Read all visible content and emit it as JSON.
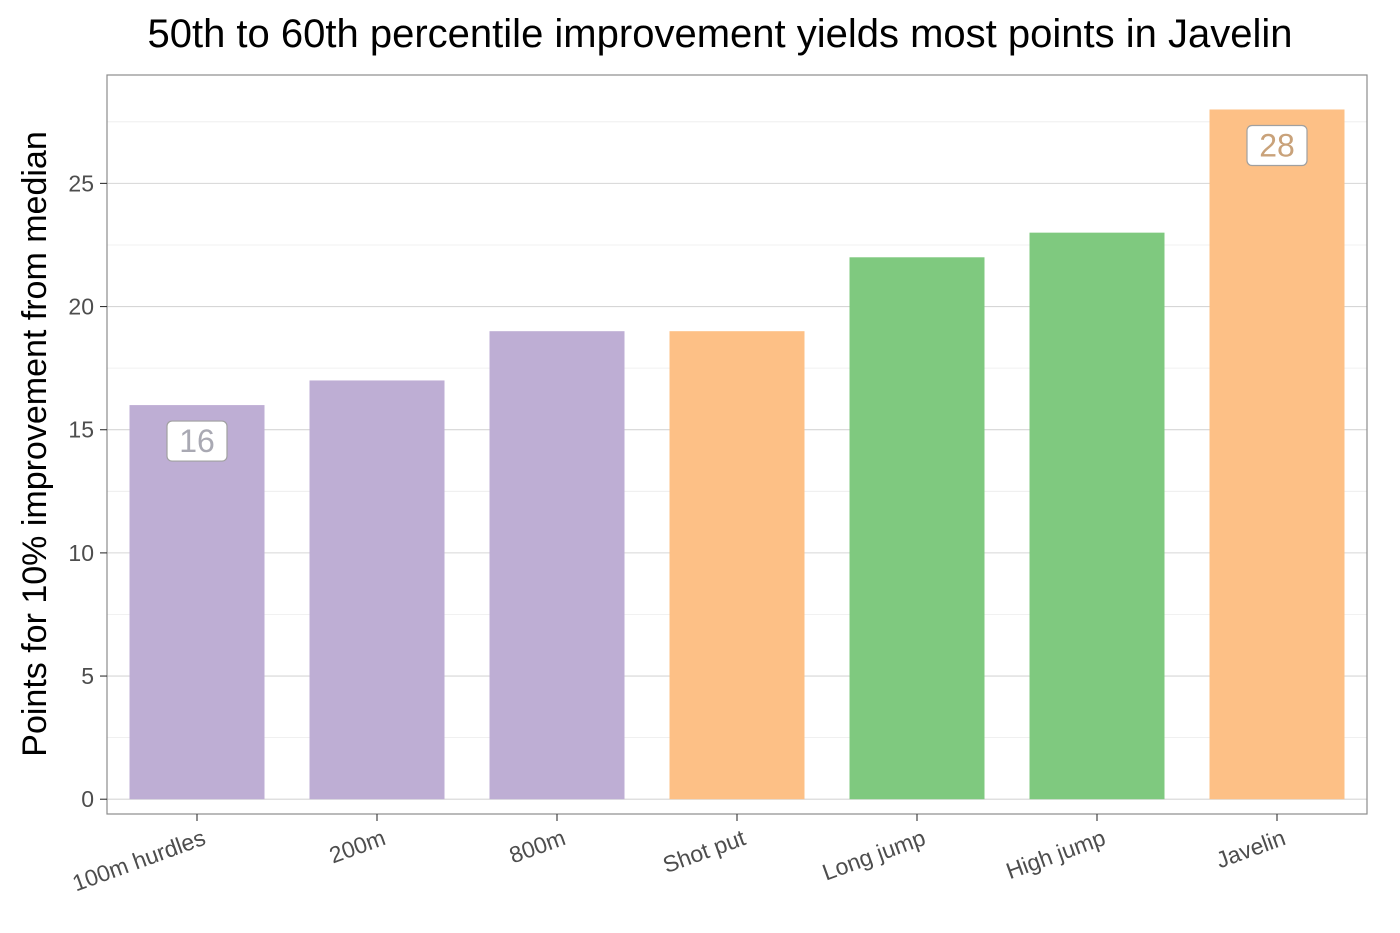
{
  "chart_data": {
    "type": "bar",
    "title": "50th to 60th percentile improvement yields most points in Javelin",
    "xlabel": "",
    "ylabel": "Points for 10% improvement from median",
    "categories": [
      "100m hurdles",
      "200m",
      "800m",
      "Shot put",
      "Long jump",
      "High jump",
      "Javelin"
    ],
    "values": [
      16,
      17,
      19,
      19,
      22,
      23,
      28
    ],
    "bar_colors": [
      "#beaed4",
      "#beaed4",
      "#beaed4",
      "#fdc086",
      "#7fc97f",
      "#7fc97f",
      "#fdc086"
    ],
    "ylim": [
      -0.6,
      29.4
    ],
    "yticks": [
      0,
      5,
      10,
      15,
      20,
      25
    ],
    "grid": true,
    "annotations": [
      {
        "category": "100m hurdles",
        "text": "16",
        "color": "#a9a9b3"
      },
      {
        "category": "Javelin",
        "text": "28",
        "color": "#c9a27a"
      }
    ]
  }
}
